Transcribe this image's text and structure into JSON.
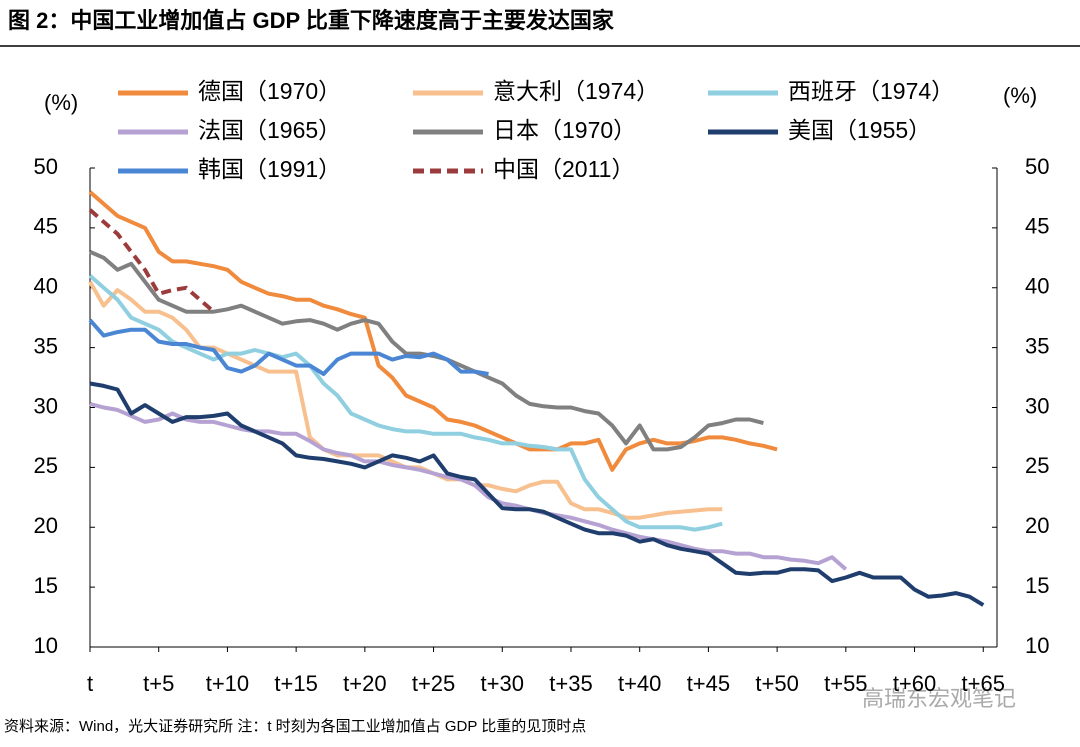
{
  "chart_data": {
    "type": "line",
    "title": "图 2：中国工业增加值占 GDP 比重下降速度高于主要发达国家",
    "ylabel": "(%)",
    "y2label": "(%)",
    "source": "资料来源：Wind，光大证券研究所  注：t 时刻为各国工业增加值占 GDP 比重的见顶时点",
    "watermark": "高瑞东宏观笔记",
    "x": [
      0,
      1,
      2,
      3,
      4,
      5,
      6,
      7,
      8,
      9,
      10,
      11,
      12,
      13,
      14,
      15,
      16,
      17,
      18,
      19,
      20,
      21,
      22,
      23,
      24,
      25,
      26,
      27,
      28,
      29,
      30,
      31,
      32,
      33,
      34,
      35,
      36,
      37,
      38,
      39,
      40,
      41,
      42,
      43,
      44,
      45,
      46,
      47,
      48,
      49,
      50,
      51,
      52,
      53,
      54,
      55,
      56,
      57,
      58,
      59,
      60,
      61,
      62,
      63,
      64,
      65
    ],
    "xlim": [
      0,
      66
    ],
    "xticks": [
      {
        "value": 0,
        "label": "t"
      },
      {
        "value": 5,
        "label": "t+5"
      },
      {
        "value": 10,
        "label": "t+10"
      },
      {
        "value": 15,
        "label": "t+15"
      },
      {
        "value": 20,
        "label": "t+20"
      },
      {
        "value": 25,
        "label": "t+25"
      },
      {
        "value": 30,
        "label": "t+30"
      },
      {
        "value": 35,
        "label": "t+35"
      },
      {
        "value": 40,
        "label": "t+40"
      },
      {
        "value": 45,
        "label": "t+45"
      },
      {
        "value": 50,
        "label": "t+50"
      },
      {
        "value": 55,
        "label": "t+55"
      },
      {
        "value": 60,
        "label": "t+60"
      },
      {
        "value": 65,
        "label": "t+65"
      }
    ],
    "ylim": [
      10,
      50
    ],
    "yticks": [
      10,
      15,
      20,
      25,
      30,
      35,
      40,
      45,
      50
    ],
    "y2lim": [
      10,
      50
    ],
    "y2ticks": [
      10,
      15,
      20,
      25,
      30,
      35,
      40,
      45,
      50
    ],
    "series": [
      {
        "name": "德国（1970）",
        "color": "#f08a3c",
        "dashed": false,
        "values": [
          48,
          47,
          46,
          45.5,
          45,
          43,
          42.2,
          42.2,
          42,
          41.8,
          41.5,
          40.5,
          40,
          39.5,
          39.3,
          39,
          39,
          38.5,
          38.2,
          37.8,
          37.5,
          33.5,
          32.5,
          31,
          30.5,
          30,
          29,
          28.8,
          28.5,
          28,
          27.5,
          27,
          26.5,
          26.5,
          26.5,
          27,
          27,
          27.3,
          24.8,
          26.5,
          27,
          27.3,
          27,
          27,
          27.2,
          27.5,
          27.5,
          27.3,
          27,
          26.8,
          26.5,
          null,
          null,
          null,
          null,
          null,
          null,
          null,
          null,
          null,
          null,
          null,
          null,
          null,
          null,
          null
        ]
      },
      {
        "name": "意大利（1974）",
        "color": "#f7c08e",
        "dashed": false,
        "values": [
          40.5,
          38.5,
          39.8,
          39,
          38,
          38,
          37.5,
          36.5,
          35,
          35,
          34.5,
          34,
          33.5,
          33,
          33,
          33,
          27.5,
          26.5,
          26,
          26,
          26,
          26,
          25.5,
          25,
          25,
          24.5,
          24,
          24,
          23.5,
          23.5,
          23.2,
          23,
          23.5,
          23.8,
          23.8,
          22,
          21.5,
          21.5,
          21.2,
          20.8,
          20.8,
          21,
          21.2,
          21.3,
          21.4,
          21.5,
          21.5,
          null,
          null,
          null,
          null,
          null,
          null,
          null,
          null,
          null,
          null,
          null,
          null,
          null,
          null,
          null,
          null,
          null,
          null,
          null
        ]
      },
      {
        "name": "西班牙（1974）",
        "color": "#8fcfe0",
        "dashed": false,
        "values": [
          41,
          40,
          39,
          37.5,
          37,
          36.5,
          35.5,
          35,
          34.5,
          34,
          34.5,
          34.5,
          34.8,
          34.5,
          34.2,
          34.5,
          33.5,
          32,
          31,
          29.5,
          29,
          28.5,
          28.2,
          28,
          28,
          27.8,
          27.8,
          27.8,
          27.5,
          27.3,
          27,
          27,
          26.8,
          26.7,
          26.5,
          26.5,
          24,
          22.5,
          21.5,
          20.5,
          20,
          20,
          20,
          20,
          19.8,
          20,
          20.3,
          null,
          null,
          null,
          null,
          null,
          null,
          null,
          null,
          null,
          null,
          null,
          null,
          null,
          null,
          null,
          null,
          null,
          null,
          null
        ]
      },
      {
        "name": "法国（1965）",
        "color": "#b5a2d3",
        "dashed": false,
        "values": [
          30.3,
          30,
          29.8,
          29.3,
          28.8,
          29,
          29.5,
          29,
          28.8,
          28.8,
          28.5,
          28.2,
          28,
          28,
          27.8,
          27.8,
          27.2,
          26.5,
          26.2,
          26,
          25.5,
          25.5,
          25.2,
          25,
          24.8,
          24.5,
          24.2,
          24,
          23.5,
          22.5,
          22,
          21.8,
          21.5,
          21.2,
          21,
          20.8,
          20.5,
          20.2,
          19.8,
          19.5,
          19.2,
          19,
          18.8,
          18.5,
          18.2,
          18,
          18,
          17.8,
          17.8,
          17.5,
          17.5,
          17.3,
          17.2,
          17,
          17.5,
          16.5,
          null,
          null,
          null,
          null,
          null,
          null,
          null,
          null,
          null,
          null
        ]
      },
      {
        "name": "日本（1970）",
        "color": "#808080",
        "dashed": false,
        "values": [
          43,
          42.5,
          41.5,
          42,
          40.5,
          39,
          38.5,
          38,
          38,
          38,
          38.2,
          38.5,
          38,
          37.5,
          37,
          37.2,
          37.3,
          37,
          36.5,
          37,
          37.3,
          37,
          35.5,
          34.5,
          34.5,
          34.3,
          34,
          33.5,
          33,
          32.5,
          32,
          31,
          30.3,
          30.1,
          30,
          30,
          29.7,
          29.5,
          28.5,
          27,
          28.5,
          26.5,
          26.5,
          26.7,
          27.5,
          28.5,
          28.7,
          29,
          29,
          28.7,
          null,
          null,
          null,
          null,
          null,
          null,
          null,
          null,
          null,
          null,
          null,
          null,
          null,
          null,
          null,
          null
        ]
      },
      {
        "name": "美国（1955）",
        "color": "#1f3e6e",
        "dashed": false,
        "values": [
          32,
          31.8,
          31.5,
          29.5,
          30.2,
          29.5,
          28.8,
          29.2,
          29.2,
          29.3,
          29.5,
          28.5,
          28,
          27.5,
          27,
          26,
          25.8,
          25.7,
          25.5,
          25.3,
          25,
          25.5,
          26,
          25.8,
          25.5,
          26,
          24.5,
          24.2,
          24,
          22.8,
          21.6,
          21.5,
          21.5,
          21.3,
          20.8,
          20.3,
          19.8,
          19.5,
          19.5,
          19.3,
          18.8,
          19,
          18.5,
          18.2,
          18,
          17.8,
          17,
          16.2,
          16.1,
          16.2,
          16.2,
          16.5,
          16.5,
          16.4,
          15.5,
          15.8,
          16.2,
          15.8,
          15.8,
          15.8,
          14.8,
          14.2,
          14.3,
          14.5,
          14.2,
          13.5
        ]
      },
      {
        "name": "韩国（1991）",
        "color": "#4a86d4",
        "dashed": false,
        "values": [
          37.3,
          36,
          36.3,
          36.5,
          36.5,
          35.5,
          35.3,
          35.3,
          35,
          34.8,
          33.3,
          33,
          33.5,
          34.5,
          34,
          33.5,
          33.5,
          32.8,
          34,
          34.5,
          34.5,
          34.5,
          34,
          34.3,
          34.2,
          34.5,
          34,
          33,
          33,
          32.8,
          null,
          null,
          null,
          null,
          null,
          null,
          null,
          null,
          null,
          null,
          null,
          null,
          null,
          null,
          null,
          null,
          null,
          null,
          null,
          null,
          null,
          null,
          null,
          null,
          null,
          null,
          null,
          null,
          null,
          null,
          null,
          null,
          null,
          null,
          null,
          null
        ]
      },
      {
        "name": "中国（2011）",
        "color": "#9c3b3b",
        "dashed": true,
        "values": [
          46.5,
          45.5,
          44.5,
          43,
          41.5,
          39.5,
          39.8,
          40,
          39,
          38,
          null,
          null,
          null,
          null,
          null,
          null,
          null,
          null,
          null,
          null,
          null,
          null,
          null,
          null,
          null,
          null,
          null,
          null,
          null,
          null,
          null,
          null,
          null,
          null,
          null,
          null,
          null,
          null,
          null,
          null,
          null,
          null,
          null,
          null,
          null,
          null,
          null,
          null,
          null,
          null,
          null,
          null,
          null,
          null,
          null,
          null,
          null,
          null,
          null,
          null,
          null,
          null,
          null,
          null,
          null,
          null
        ]
      }
    ]
  }
}
